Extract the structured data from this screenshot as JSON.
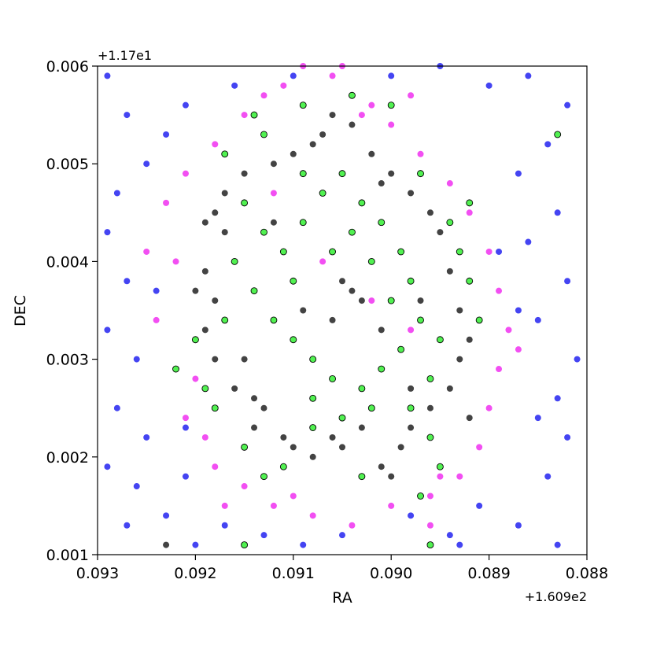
{
  "chart_data": {
    "type": "scatter",
    "x_label": "RA",
    "y_label": "DEC",
    "x_offset_label": "+1.609e2",
    "y_offset_label": "+1.17e1",
    "xlim": [
      0.093,
      0.088
    ],
    "ylim": [
      0.001,
      0.006
    ],
    "xticks": [
      0.093,
      0.092,
      0.091,
      {
        "value": 0.09,
        "label": "0.090"
      },
      0.089,
      0.088
    ],
    "yticks": [
      0.001,
      0.002,
      0.003,
      0.004,
      0.005,
      0.006
    ],
    "grid": false,
    "series": [
      {
        "color": "#2323f0",
        "edgecolor": "none",
        "x": [
          0.0929,
          0.0927,
          0.0925,
          0.0928,
          0.0929,
          0.0927,
          0.0929,
          0.0926,
          0.0928,
          0.0925,
          0.0929,
          0.0926,
          0.0923,
          0.092,
          0.0917,
          0.0913,
          0.0909,
          0.0905,
          0.0898,
          0.0894,
          0.0891,
          0.0887,
          0.0884,
          0.0882,
          0.0883,
          0.0881,
          0.0885,
          0.0882,
          0.0886,
          0.0883,
          0.0887,
          0.0884,
          0.0882,
          0.0886,
          0.089,
          0.0895,
          0.09,
          0.091,
          0.0916,
          0.0921,
          0.0923,
          0.0887,
          0.0885,
          0.0893,
          0.0921,
          0.0927,
          0.0883,
          0.0889,
          0.0924,
          0.0921
        ],
        "y": [
          0.0059,
          0.0055,
          0.005,
          0.0047,
          0.0043,
          0.0038,
          0.0033,
          0.003,
          0.0025,
          0.0022,
          0.0019,
          0.0017,
          0.0014,
          0.0011,
          0.0013,
          0.0012,
          0.0011,
          0.0012,
          0.0014,
          0.0012,
          0.0015,
          0.0013,
          0.0018,
          0.0022,
          0.0026,
          0.003,
          0.0034,
          0.0038,
          0.0042,
          0.0045,
          0.0049,
          0.0052,
          0.0056,
          0.0059,
          0.0058,
          0.006,
          0.0059,
          0.0059,
          0.0058,
          0.0056,
          0.0053,
          0.0035,
          0.0024,
          0.0011,
          0.0018,
          0.0013,
          0.0011,
          0.0041,
          0.0037,
          0.0023
        ]
      },
      {
        "color": "#f030f0",
        "edgecolor": "none",
        "x": [
          0.0918,
          0.0921,
          0.0923,
          0.0922,
          0.0924,
          0.092,
          0.0921,
          0.0918,
          0.0915,
          0.0912,
          0.0908,
          0.0904,
          0.09,
          0.0896,
          0.0893,
          0.0891,
          0.089,
          0.0889,
          0.0888,
          0.0889,
          0.089,
          0.0892,
          0.0894,
          0.0897,
          0.09,
          0.0902,
          0.0906,
          0.0909,
          0.0913,
          0.0915,
          0.0911,
          0.0905,
          0.0895,
          0.0896,
          0.091,
          0.0919,
          0.0925,
          0.0887,
          0.0898,
          0.0902,
          0.0907,
          0.0912,
          0.0903,
          0.0917,
          0.0898
        ],
        "y": [
          0.0052,
          0.0049,
          0.0046,
          0.004,
          0.0034,
          0.0028,
          0.0024,
          0.0019,
          0.0017,
          0.0015,
          0.0014,
          0.0013,
          0.0015,
          0.0016,
          0.0018,
          0.0021,
          0.0025,
          0.0029,
          0.0033,
          0.0037,
          0.0041,
          0.0045,
          0.0048,
          0.0051,
          0.0054,
          0.0056,
          0.0059,
          0.006,
          0.0057,
          0.0055,
          0.0058,
          0.006,
          0.0018,
          0.0013,
          0.0016,
          0.0022,
          0.0041,
          0.0031,
          0.0033,
          0.0036,
          0.004,
          0.0047,
          0.0055,
          0.0015,
          0.0057
        ]
      },
      {
        "color": "#222222",
        "edgecolor": "none",
        "x": [
          0.0918,
          0.0919,
          0.0917,
          0.0919,
          0.092,
          0.0918,
          0.0919,
          0.0918,
          0.0916,
          0.0914,
          0.0913,
          0.0911,
          0.091,
          0.0908,
          0.0906,
          0.0905,
          0.0903,
          0.0901,
          0.09,
          0.0899,
          0.0898,
          0.0896,
          0.0894,
          0.0893,
          0.0892,
          0.0893,
          0.0894,
          0.0895,
          0.0896,
          0.0898,
          0.09,
          0.0902,
          0.0904,
          0.0906,
          0.0908,
          0.091,
          0.0912,
          0.0915,
          0.0917,
          0.0905,
          0.0904,
          0.0903,
          0.0906,
          0.0897,
          0.0898,
          0.0915,
          0.0912,
          0.0907,
          0.0901,
          0.0892,
          0.0923,
          0.0909,
          0.0901,
          0.0914
        ],
        "y": [
          0.0045,
          0.0044,
          0.0043,
          0.0039,
          0.0037,
          0.0036,
          0.0033,
          0.003,
          0.0027,
          0.0026,
          0.0025,
          0.0022,
          0.0021,
          0.002,
          0.0022,
          0.0021,
          0.0023,
          0.0019,
          0.0018,
          0.0021,
          0.0023,
          0.0025,
          0.0027,
          0.003,
          0.0032,
          0.0035,
          0.0039,
          0.0043,
          0.0045,
          0.0047,
          0.0049,
          0.0051,
          0.0054,
          0.0055,
          0.0052,
          0.0051,
          0.005,
          0.0049,
          0.0047,
          0.0038,
          0.0037,
          0.0036,
          0.0034,
          0.0036,
          0.0027,
          0.003,
          0.0044,
          0.0053,
          0.0048,
          0.0024,
          0.0011,
          0.0035,
          0.0033,
          0.0023
        ]
      },
      {
        "color": "#33ee33",
        "edgecolor": "#000000",
        "x": [
          0.0915,
          0.0913,
          0.0911,
          0.0909,
          0.0907,
          0.0905,
          0.0903,
          0.0901,
          0.0899,
          0.0898,
          0.0897,
          0.0899,
          0.0901,
          0.0903,
          0.0906,
          0.0908,
          0.091,
          0.0912,
          0.0914,
          0.0916,
          0.0917,
          0.0913,
          0.0909,
          0.0904,
          0.09,
          0.0894,
          0.0893,
          0.0892,
          0.0895,
          0.0896,
          0.0898,
          0.0896,
          0.0902,
          0.0905,
          0.0908,
          0.0911,
          0.0913,
          0.0915,
          0.0918,
          0.0919,
          0.092,
          0.0917,
          0.0906,
          0.0904,
          0.0902,
          0.09,
          0.091,
          0.0908,
          0.0895,
          0.0903,
          0.0897,
          0.0914,
          0.0909,
          0.0897,
          0.0883,
          0.0915,
          0.0896,
          0.0922,
          0.0892,
          0.0891
        ],
        "y": [
          0.0046,
          0.0043,
          0.0041,
          0.0044,
          0.0047,
          0.0049,
          0.0046,
          0.0044,
          0.0041,
          0.0038,
          0.0034,
          0.0031,
          0.0029,
          0.0027,
          0.0028,
          0.003,
          0.0032,
          0.0034,
          0.0037,
          0.004,
          0.0051,
          0.0053,
          0.0056,
          0.0057,
          0.0056,
          0.0044,
          0.0041,
          0.0038,
          0.0032,
          0.0028,
          0.0025,
          0.0022,
          0.0025,
          0.0024,
          0.0023,
          0.0019,
          0.0018,
          0.0021,
          0.0025,
          0.0027,
          0.0032,
          0.0034,
          0.0041,
          0.0043,
          0.004,
          0.0036,
          0.0038,
          0.0026,
          0.0019,
          0.0018,
          0.0016,
          0.0055,
          0.0049,
          0.0049,
          0.0053,
          0.0011,
          0.0011,
          0.0029,
          0.0046,
          0.0034
        ]
      }
    ]
  }
}
